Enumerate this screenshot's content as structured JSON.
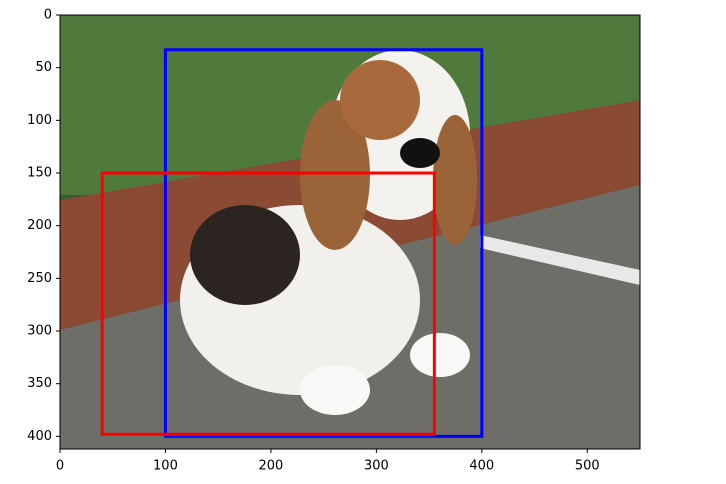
{
  "chart_data": {
    "type": "image_boxes",
    "xlim": [
      0,
      550
    ],
    "ylim": [
      412,
      0
    ],
    "xticks": [
      0,
      100,
      200,
      300,
      400,
      500
    ],
    "yticks": [
      0,
      50,
      100,
      150,
      200,
      250,
      300,
      350,
      400
    ],
    "boxes": [
      {
        "color": "#0000ff",
        "values": [
          100,
          33,
          400,
          400
        ]
      },
      {
        "color": "#ff0000",
        "values": [
          40,
          150,
          355,
          398
        ]
      }
    ]
  }
}
